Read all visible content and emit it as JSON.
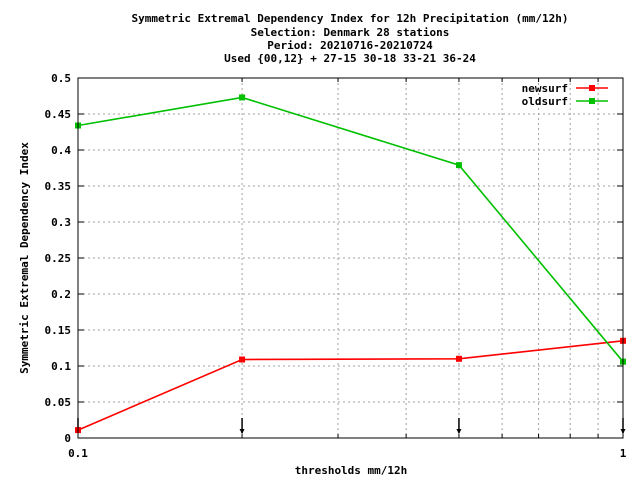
{
  "chart_data": {
    "type": "line",
    "title_lines": [
      "Symmetric Extremal Dependency Index  for 12h Precipitation (mm/12h)",
      "Selection: Denmark     28 stations",
      "Period: 20210716-20210724",
      "Used {00,12} + 27-15 30-18 33-21 36-24"
    ],
    "xlabel": "thresholds mm/12h",
    "ylabel": "Symmetric Extremal Dependency Index",
    "x_scale": "log",
    "xlim": [
      0.1,
      1
    ],
    "ylim": [
      0,
      0.5
    ],
    "x_tick_labels": [
      "0.1",
      "1"
    ],
    "y_ticks": [
      0,
      0.05,
      0.1,
      0.15,
      0.2,
      0.25,
      0.3,
      0.35,
      0.4,
      0.45,
      0.5
    ],
    "y_tick_labels": [
      "0",
      "0.05",
      "0.1",
      "0.15",
      "0.2",
      "0.25",
      "0.3",
      "0.35",
      "0.4",
      "0.45",
      "0.5"
    ],
    "grid": true,
    "legend_position": "top-right",
    "threshold_markers": [
      0.1,
      0.2,
      0.5,
      1
    ],
    "series": [
      {
        "name": "newsurf",
        "color": "#ff0000",
        "x": [
          0.1,
          0.2,
          0.5,
          1
        ],
        "y": [
          0.011,
          0.109,
          0.11,
          0.135
        ]
      },
      {
        "name": "oldsurf",
        "color": "#00c000",
        "x": [
          0.1,
          0.2,
          0.5,
          1
        ],
        "y": [
          0.434,
          0.473,
          0.379,
          0.106
        ]
      }
    ]
  }
}
